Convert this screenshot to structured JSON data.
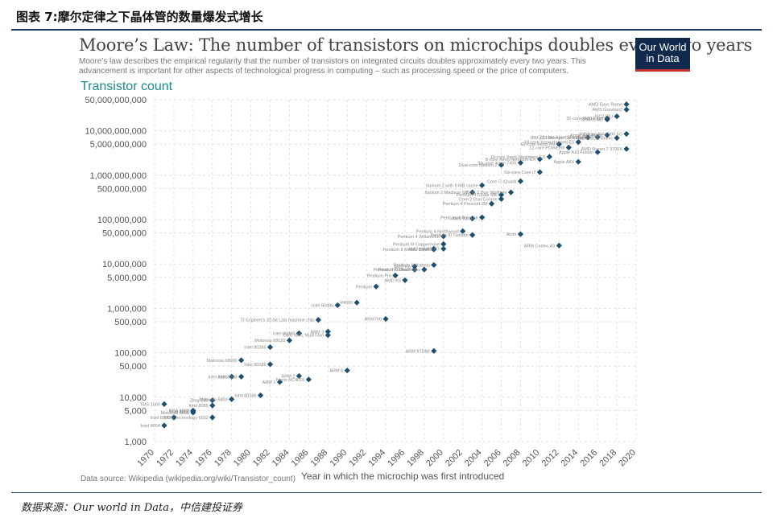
{
  "figure_caption": "图表 7:摩尔定律之下晶体管的数量爆发式增长",
  "source_note": "数据来源：Our world in Data，中信建投证券",
  "logo_text": "Our World in Data",
  "colors": {
    "point": "#1f4f6e",
    "grid": "#e3e3e3",
    "accent": "#1a8a8a",
    "logo_bg": "#0f2a4d",
    "logo_bar": "#c4302b",
    "rule": "#1f3d6b"
  },
  "chart_data": {
    "type": "scatter",
    "title": "Moore’s Law: The number of transistors on microchips doubles every two years",
    "subtitle": "Moore's law describes the empirical regularity that the number of transistors on integrated circuits doubles approximately every two years. This advancement is important for other aspects of technological progress in computing – such as processing speed or the price of computers.",
    "ylabel": "Transistor count",
    "xlabel": "Year in which the microchip was first introduced",
    "source": "Data source: Wikipedia (wikipedia.org/wiki/Transistor_count)",
    "y_scale": "log",
    "xlim": [
      1970,
      2020
    ],
    "ylim": [
      1000,
      50000000000
    ],
    "y_ticks": [
      {
        "v": 1000,
        "label": "1,000"
      },
      {
        "v": 5000,
        "label": "5,000"
      },
      {
        "v": 10000,
        "label": "10,000"
      },
      {
        "v": 50000,
        "label": "50,000"
      },
      {
        "v": 100000,
        "label": "100,000"
      },
      {
        "v": 500000,
        "label": "500,000"
      },
      {
        "v": 1000000,
        "label": "1,000,000"
      },
      {
        "v": 5000000,
        "label": "5,000,000"
      },
      {
        "v": 10000000,
        "label": "10,000,000"
      },
      {
        "v": 50000000,
        "label": "50,000,000"
      },
      {
        "v": 100000000,
        "label": "100,000,000"
      },
      {
        "v": 500000000,
        "label": "500,000,000"
      },
      {
        "v": 1000000000,
        "label": "1,000,000,000"
      },
      {
        "v": 5000000000,
        "label": "5,000,000,000"
      },
      {
        "v": 10000000000,
        "label": "10,000,000,000"
      },
      {
        "v": 50000000000,
        "label": "50,000,000,000"
      }
    ],
    "x_ticks": [
      "1970",
      "1972",
      "1974",
      "1976",
      "1978",
      "1980",
      "1982",
      "1984",
      "1986",
      "1988",
      "1990",
      "1992",
      "1994",
      "1996",
      "1998",
      "2000",
      "2002",
      "2004",
      "2006",
      "2008",
      "2010",
      "2012",
      "2014",
      "2016",
      "2018",
      "2020"
    ],
    "grid": true,
    "points": [
      {
        "x": 1971,
        "y": 2300,
        "label": "Intel 4004"
      },
      {
        "x": 1971,
        "y": 7000,
        "label": "TMS 1000"
      },
      {
        "x": 1972,
        "y": 3500,
        "label": "Intel 8008"
      },
      {
        "x": 1974,
        "y": 4500,
        "label": "Motorola 6800"
      },
      {
        "x": 1974,
        "y": 4800,
        "label": "Intel 8080"
      },
      {
        "x": 1974,
        "y": 5000,
        "label": "RCA 1802"
      },
      {
        "x": 1976,
        "y": 6500,
        "label": "Intel 8085"
      },
      {
        "x": 1976,
        "y": 8500,
        "label": "Zilog Z80"
      },
      {
        "x": 1976,
        "y": 3500,
        "label": "MOS Technology 6502"
      },
      {
        "x": 1978,
        "y": 29000,
        "label": "Intel 8086"
      },
      {
        "x": 1979,
        "y": 29000,
        "label": "Intel 8088"
      },
      {
        "x": 1979,
        "y": 68000,
        "label": "Motorola 68000"
      },
      {
        "x": 1978,
        "y": 9000,
        "label": "Motorola 6809"
      },
      {
        "x": 1981,
        "y": 11000,
        "label": "Intel 80186"
      },
      {
        "x": 1982,
        "y": 55000,
        "label": "Intel 80186"
      },
      {
        "x": 1982,
        "y": 134000,
        "label": "Intel 80286"
      },
      {
        "x": 1983,
        "y": 22000,
        "label": "ARM 1"
      },
      {
        "x": 1984,
        "y": 190000,
        "label": "Motorola 68020"
      },
      {
        "x": 1985,
        "y": 275000,
        "label": "Intel 80386"
      },
      {
        "x": 1985,
        "y": 30000,
        "label": "ARM 2"
      },
      {
        "x": 1986,
        "y": 25000,
        "label": "Novix NC4016"
      },
      {
        "x": 1987,
        "y": 553000,
        "label": "TI Explorer's 32-bit Lisp machine chip"
      },
      {
        "x": 1988,
        "y": 250000,
        "label": "DEC WRL MultiTitan"
      },
      {
        "x": 1988,
        "y": 300000,
        "label": "ARM 3"
      },
      {
        "x": 1989,
        "y": 1180000,
        "label": "Intel 80486"
      },
      {
        "x": 1990,
        "y": 40000,
        "label": "ARM 6"
      },
      {
        "x": 1991,
        "y": 1350000,
        "label": "R4000"
      },
      {
        "x": 1993,
        "y": 3100000,
        "label": "Pentium"
      },
      {
        "x": 1994,
        "y": 578000,
        "label": "ARM700"
      },
      {
        "x": 1995,
        "y": 5500000,
        "label": "Pentium Pro"
      },
      {
        "x": 1996,
        "y": 4300000,
        "label": "AMD K5"
      },
      {
        "x": 1997,
        "y": 7500000,
        "label": "Pentium II Klamath"
      },
      {
        "x": 1997,
        "y": 8800000,
        "label": "AMD K6"
      },
      {
        "x": 1998,
        "y": 7500000,
        "label": "Pentium II Deschutes"
      },
      {
        "x": 1999,
        "y": 9500000,
        "label": "Pentium III Katmai"
      },
      {
        "x": 1999,
        "y": 22000000,
        "label": "AMD K6-III"
      },
      {
        "x": 1999,
        "y": 21300000,
        "label": "Pentium II Mobile Dixon"
      },
      {
        "x": 1999,
        "y": 110000,
        "label": "ARM 9TDMI"
      },
      {
        "x": 2000,
        "y": 22000000,
        "label": "AMD K7"
      },
      {
        "x": 2000,
        "y": 28100000,
        "label": "Pentium III Coppermine"
      },
      {
        "x": 2000,
        "y": 42000000,
        "label": "Pentium 4 Willamette"
      },
      {
        "x": 2002,
        "y": 55000000,
        "label": "Pentium 4 Northwood"
      },
      {
        "x": 2003,
        "y": 45000000,
        "label": "Pentium III Tualatin"
      },
      {
        "x": 2003,
        "y": 106000000,
        "label": "AMD K8"
      },
      {
        "x": 2003,
        "y": 410000000,
        "label": "Itanium 2 Madison 6M"
      },
      {
        "x": 2004,
        "y": 112000000,
        "label": "Pentium 4 Prescott"
      },
      {
        "x": 2004,
        "y": 592000000,
        "label": "Itanium 2 with 9 MB cache"
      },
      {
        "x": 2005,
        "y": 228000000,
        "label": "Pentium 4 Prescott-2M"
      },
      {
        "x": 2006,
        "y": 291000000,
        "label": "Core 2 Duo Conroe"
      },
      {
        "x": 2006,
        "y": 362000000,
        "label": "Pentium 4 Cedar Mill"
      },
      {
        "x": 2006,
        "y": 1700000000,
        "label": "Dual-core Itanium 2"
      },
      {
        "x": 2007,
        "y": 410000000,
        "label": "Core 2 Duo Wolfdale"
      },
      {
        "x": 2008,
        "y": 47000000,
        "label": "Atom"
      },
      {
        "x": 2008,
        "y": 731000000,
        "label": "Core i7 (Quad)"
      },
      {
        "x": 2008,
        "y": 1900000000,
        "label": "Six-core Xeon 7400"
      },
      {
        "x": 2010,
        "y": 2300000000,
        "label": "8-core Xeon Nehalem-EX"
      },
      {
        "x": 2010,
        "y": 1170000000,
        "label": "Six-core Core i7"
      },
      {
        "x": 2011,
        "y": 2600000000,
        "label": "10-core Xeon Westmere-EX"
      },
      {
        "x": 2012,
        "y": 5000000000,
        "label": "62-core Xeon Phi"
      },
      {
        "x": 2012,
        "y": 26000000,
        "label": "ARM Cortex-A9"
      },
      {
        "x": 2013,
        "y": 4200000000,
        "label": "12-core POWER8"
      },
      {
        "x": 2014,
        "y": 5560000000,
        "label": "18-core Xeon Haswell-E5"
      },
      {
        "x": 2014,
        "y": 2000000000,
        "label": "Apple A8X"
      },
      {
        "x": 2015,
        "y": 7100000000,
        "label": "IBM z13 Storage Controller"
      },
      {
        "x": 2016,
        "y": 7200000000,
        "label": "22-core Xeon Broadwell-E5"
      },
      {
        "x": 2016,
        "y": 3300000000,
        "label": "Apple A10 Fusion"
      },
      {
        "x": 2017,
        "y": 19200000000,
        "label": "32-core AMD Epyc"
      },
      {
        "x": 2017,
        "y": 8000000000,
        "label": "Apple A11 Bionic"
      },
      {
        "x": 2017,
        "y": 18000000000,
        "label": "SPARC M7"
      },
      {
        "x": 2018,
        "y": 21100000000,
        "label": "GC2 IPU"
      },
      {
        "x": 2018,
        "y": 6900000000,
        "label": "Apple A12X Bionic"
      },
      {
        "x": 2019,
        "y": 39540000000,
        "label": "AMD Epyc Rome"
      },
      {
        "x": 2019,
        "y": 30000000000,
        "label": "AWS Graviton2"
      },
      {
        "x": 2019,
        "y": 8500000000,
        "label": "HiSilicon Kirin 990 5G"
      },
      {
        "x": 2019,
        "y": 3900000000,
        "label": "AMD Ryzen 7 3700X"
      }
    ]
  }
}
